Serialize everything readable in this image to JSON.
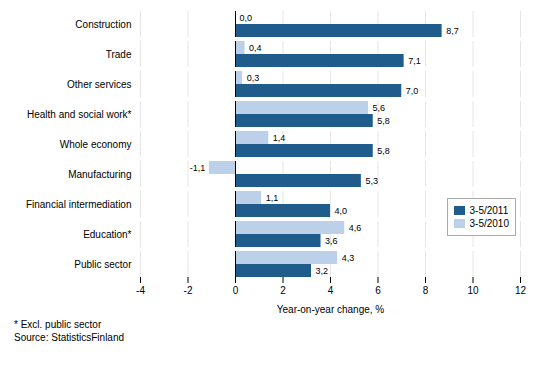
{
  "chart_data": {
    "type": "bar",
    "orientation": "horizontal",
    "categories": [
      "Construction",
      "Trade",
      "Other services",
      "Health and social work*",
      "Whole economy",
      "Manufacturing",
      "Financial intermediation",
      "Education*",
      "Public sector"
    ],
    "series": [
      {
        "name": "3-5/2011",
        "color": "#1F5C8B",
        "values": [
          8.7,
          7.1,
          7.0,
          5.8,
          5.8,
          5.3,
          4.0,
          3.6,
          3.2
        ],
        "value_labels": [
          "8,7",
          "7,1",
          "7,0",
          "5,8",
          "5,8",
          "5,3",
          "4,0",
          "3,6",
          "3,2"
        ]
      },
      {
        "name": "3-5/2010",
        "color": "#BDD0E9",
        "values": [
          0.0,
          0.4,
          0.3,
          5.6,
          1.4,
          -1.1,
          1.1,
          4.6,
          4.3
        ],
        "value_labels": [
          "0,0",
          "0,4",
          "0,3",
          "5,6",
          "1,4",
          "-1,1",
          "1,1",
          "4,6",
          "4,3"
        ]
      }
    ],
    "xlabel": "Year-on-year change, %",
    "xlim": [
      -4,
      12
    ],
    "xticks": [
      -4,
      -2,
      0,
      2,
      4,
      6,
      8,
      10,
      12
    ],
    "grid": true,
    "data_labels": true,
    "legend": "lower right",
    "annotations": [
      "* Excl. public sector",
      "Source: StatisticsFinland"
    ]
  }
}
